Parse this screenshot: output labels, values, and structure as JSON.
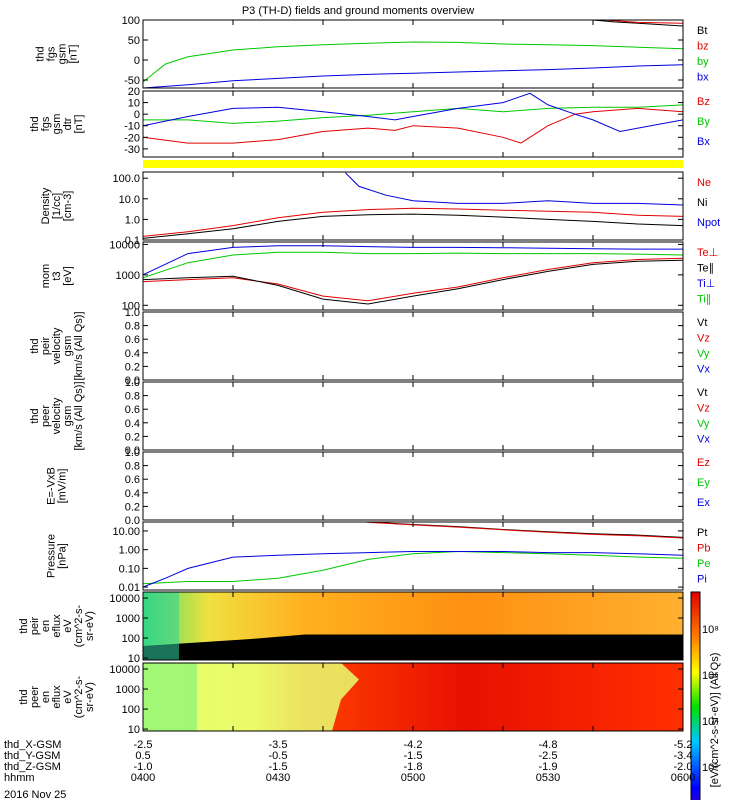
{
  "title": "P3 (TH-D) fields and ground moments overview",
  "date_label": "2016 Nov 25",
  "colors": {
    "black": "#000000",
    "red": "#e00000",
    "green": "#00c800",
    "blue": "#0000e0",
    "yellow": "#ffff00"
  },
  "chart_data": [
    {
      "id": "fgs-gsm",
      "type": "line",
      "ylabel": [
        "thd",
        "fgs",
        "gsm",
        "[nT]"
      ],
      "ylim": [
        -70,
        100
      ],
      "yticks": [
        {
          "v": -50,
          "l": "-50"
        },
        {
          "v": 0,
          "l": "0"
        },
        {
          "v": 50,
          "l": "50"
        },
        {
          "v": 100,
          "l": "100"
        }
      ],
      "series": [
        {
          "name": "Bt",
          "color": "#000000",
          "x": [
            4.95,
            5.0,
            5.25,
            5.5,
            6.0
          ],
          "y": [
            102,
            100,
            95,
            92,
            85
          ]
        },
        {
          "name": "bz",
          "color": "#e00000",
          "x": [
            4.95,
            5.0,
            5.25,
            5.5,
            6.0
          ],
          "y": [
            104,
            102,
            98,
            94,
            92
          ]
        },
        {
          "name": "by",
          "color": "#00c800",
          "x": [
            0,
            0.25,
            0.5,
            1.0,
            1.5,
            2.0,
            2.5,
            3.0,
            3.5,
            4.0,
            4.5,
            5.0,
            5.5,
            6.0
          ],
          "y": [
            -55,
            -10,
            8,
            25,
            33,
            38,
            42,
            45,
            44,
            40,
            38,
            36,
            32,
            28
          ]
        },
        {
          "name": "bx",
          "color": "#0000e0",
          "x": [
            0,
            0.5,
            1.0,
            1.5,
            2.0,
            2.5,
            3.0,
            3.5,
            4.0,
            4.5,
            5.0,
            5.5,
            6.0
          ],
          "y": [
            -70,
            -62,
            -52,
            -46,
            -40,
            -36,
            -33,
            -30,
            -27,
            -24,
            -20,
            -15,
            -12
          ]
        }
      ]
    },
    {
      "id": "fgs-gsm-dtrend",
      "type": "line",
      "ylabel": [
        "thd",
        "fgs",
        "gsm",
        "dtr",
        "[nT]"
      ],
      "ylim": [
        -37,
        20
      ],
      "yticks": [
        {
          "v": -30,
          "l": "-30"
        },
        {
          "v": -20,
          "l": "-20"
        },
        {
          "v": -10,
          "l": "-10"
        },
        {
          "v": 0,
          "l": "0"
        },
        {
          "v": 10,
          "l": "10"
        },
        {
          "v": 20,
          "l": "20"
        }
      ],
      "series": [
        {
          "name": "Bz",
          "color": "#e00000",
          "x": [
            0,
            0.5,
            1.0,
            1.5,
            2.0,
            2.5,
            2.8,
            3.0,
            3.5,
            4.0,
            4.2,
            4.5,
            4.8,
            5.0,
            5.5,
            6.0
          ],
          "y": [
            -20,
            -25,
            -25,
            -22,
            -15,
            -12,
            -14,
            -10,
            -12,
            -20,
            -25,
            -10,
            0,
            2,
            5,
            2
          ]
        },
        {
          "name": "By",
          "color": "#00c800",
          "x": [
            0,
            0.5,
            1.0,
            1.5,
            2.0,
            2.5,
            3.0,
            3.5,
            4.0,
            4.5,
            5.0,
            5.5,
            6.0
          ],
          "y": [
            -5,
            -5,
            -8,
            -6,
            -3,
            -1,
            2,
            5,
            2,
            5,
            6,
            6,
            8
          ]
        },
        {
          "name": "Bx",
          "color": "#0000e0",
          "x": [
            0,
            0.5,
            1.0,
            1.5,
            2.0,
            2.5,
            2.8,
            3.0,
            3.5,
            4.0,
            4.3,
            4.5,
            4.8,
            5.0,
            5.3,
            5.5,
            6.0
          ],
          "y": [
            -10,
            -2,
            5,
            6,
            2,
            -2,
            -5,
            -2,
            5,
            10,
            18,
            8,
            0,
            -5,
            -15,
            -12,
            -5
          ]
        }
      ]
    },
    {
      "id": "density",
      "type": "line",
      "log": true,
      "ylabel": [
        "Density",
        "[1/cc]",
        "[cm-3]"
      ],
      "ylim": [
        0.1,
        200
      ],
      "yticks": [
        {
          "v": 0.1,
          "l": "0.1"
        },
        {
          "v": 1,
          "l": "1.0"
        },
        {
          "v": 10,
          "l": "10.0"
        },
        {
          "v": 100,
          "l": "100.0"
        }
      ],
      "series": [
        {
          "name": "Ne",
          "color": "#e00000",
          "x": [
            0,
            0.5,
            1.0,
            1.5,
            2.0,
            2.5,
            3.0,
            3.5,
            4.0,
            4.5,
            5.0,
            5.5,
            6.0
          ],
          "y": [
            0.15,
            0.25,
            0.5,
            1.2,
            2.2,
            3,
            3.5,
            3.2,
            2.8,
            2.5,
            2.2,
            1.6,
            1.4
          ]
        },
        {
          "name": "Ni",
          "color": "#000000",
          "x": [
            0,
            0.5,
            1.0,
            1.5,
            2.0,
            2.5,
            3.0,
            3.5,
            4.0,
            4.5,
            5.0,
            5.5,
            6.0
          ],
          "y": [
            0.12,
            0.2,
            0.35,
            0.8,
            1.4,
            1.7,
            1.8,
            1.6,
            1.3,
            1.0,
            0.8,
            0.6,
            0.5
          ]
        },
        {
          "name": "Npot",
          "color": "#0000e0",
          "x": [
            2.25,
            2.4,
            2.7,
            3.0,
            3.5,
            4.0,
            4.5,
            5.0,
            5.5,
            6.0
          ],
          "y": [
            180,
            40,
            15,
            8,
            6,
            6,
            8,
            6,
            6,
            5
          ]
        }
      ]
    },
    {
      "id": "moments-t3",
      "type": "line",
      "log": true,
      "ylabel": [
        "mom",
        "t3",
        "[eV]"
      ],
      "ylim": [
        70,
        12000
      ],
      "yticks": [
        {
          "v": 100,
          "l": "100"
        },
        {
          "v": 1000,
          "l": "1000"
        },
        {
          "v": 10000,
          "l": "10000"
        }
      ],
      "series": [
        {
          "name": "Te⊥",
          "color": "#e00000",
          "x": [
            0,
            0.5,
            1.0,
            1.5,
            2.0,
            2.5,
            3.0,
            3.5,
            4.0,
            4.5,
            5.0,
            5.5,
            6.0
          ],
          "y": [
            600,
            700,
            800,
            500,
            200,
            140,
            250,
            400,
            800,
            1500,
            2500,
            3200,
            3500
          ]
        },
        {
          "name": "Te∥",
          "color": "#000000",
          "x": [
            0,
            0.5,
            1.0,
            1.5,
            2.0,
            2.5,
            3.0,
            3.5,
            4.0,
            4.5,
            5.0,
            5.5,
            6.0
          ],
          "y": [
            700,
            800,
            900,
            450,
            160,
            110,
            200,
            350,
            700,
            1300,
            2200,
            2800,
            3000
          ]
        },
        {
          "name": "Ti⊥",
          "color": "#0000e0",
          "x": [
            0,
            0.5,
            1.0,
            1.5,
            2.0,
            2.5,
            3.0,
            3.5,
            4.0,
            4.5,
            5.0,
            5.5,
            6.0
          ],
          "y": [
            1000,
            5000,
            8000,
            9000,
            9000,
            8500,
            8000,
            8000,
            7800,
            7500,
            7200,
            7000,
            7000
          ]
        },
        {
          "name": "Ti∥",
          "color": "#00c800",
          "x": [
            0,
            0.5,
            1.0,
            1.5,
            2.0,
            2.5,
            3.0,
            3.5,
            4.0,
            4.5,
            5.0,
            5.5,
            6.0
          ],
          "y": [
            800,
            2500,
            4500,
            5500,
            5500,
            5000,
            5000,
            5200,
            5000,
            5000,
            5000,
            4800,
            4500
          ]
        }
      ]
    },
    {
      "id": "peir-velocity",
      "type": "line",
      "ylabel": [
        "thd",
        "peir",
        "velocity",
        "gsm",
        "[km/s (All Qs)]"
      ],
      "ylim": [
        0,
        1
      ],
      "yticks": [
        {
          "v": 0,
          "l": "0.0"
        },
        {
          "v": 0.2,
          "l": "0.2"
        },
        {
          "v": 0.4,
          "l": "0.4"
        },
        {
          "v": 0.6,
          "l": "0.6"
        },
        {
          "v": 0.8,
          "l": "0.8"
        },
        {
          "v": 1.0,
          "l": "1.0"
        }
      ],
      "series": [
        {
          "name": "Vt",
          "color": "#000000"
        },
        {
          "name": "Vz",
          "color": "#e00000"
        },
        {
          "name": "Vy",
          "color": "#00c800"
        },
        {
          "name": "Vx",
          "color": "#0000e0"
        }
      ]
    },
    {
      "id": "peer-velocity",
      "type": "line",
      "ylabel": [
        "thd",
        "peer",
        "velocity",
        "gsm",
        "[km/s (All Qs)]"
      ],
      "ylim": [
        0,
        1
      ],
      "yticks": [
        {
          "v": 0,
          "l": "0.0"
        },
        {
          "v": 0.2,
          "l": "0.2"
        },
        {
          "v": 0.4,
          "l": "0.4"
        },
        {
          "v": 0.6,
          "l": "0.6"
        },
        {
          "v": 0.8,
          "l": "0.8"
        },
        {
          "v": 1.0,
          "l": "1.0"
        }
      ],
      "series": [
        {
          "name": "Vt",
          "color": "#000000"
        },
        {
          "name": "Vz",
          "color": "#e00000"
        },
        {
          "name": "Vy",
          "color": "#00c800"
        },
        {
          "name": "Vx",
          "color": "#0000e0"
        }
      ]
    },
    {
      "id": "efield",
      "type": "line",
      "ylabel": [
        "E=-VxB",
        "[mV/m]"
      ],
      "ylim": [
        0,
        1
      ],
      "yticks": [
        {
          "v": 0,
          "l": "0.0"
        },
        {
          "v": 0.2,
          "l": "0.2"
        },
        {
          "v": 0.4,
          "l": "0.4"
        },
        {
          "v": 0.6,
          "l": "0.6"
        },
        {
          "v": 0.8,
          "l": "0.8"
        },
        {
          "v": 1.0,
          "l": "1.0"
        }
      ],
      "series": [
        {
          "name": "Ez",
          "color": "#e00000"
        },
        {
          "name": "Ey",
          "color": "#00c800"
        },
        {
          "name": "Ex",
          "color": "#0000e0"
        }
      ]
    },
    {
      "id": "pressure",
      "type": "line",
      "log": true,
      "ylabel": [
        "Pressure",
        "[nPa]"
      ],
      "ylim": [
        0.007,
        30
      ],
      "yticks": [
        {
          "v": 0.01,
          "l": "0.01"
        },
        {
          "v": 0.1,
          "l": "0.10"
        },
        {
          "v": 1,
          "l": "1.00"
        },
        {
          "v": 10,
          "l": "10.00"
        }
      ],
      "series": [
        {
          "name": "Pt",
          "color": "#000000",
          "x": [
            2.3,
            2.5,
            3.0,
            3.5,
            4.0,
            4.5,
            5.0,
            5.5,
            6.0
          ],
          "y": [
            35,
            30,
            22,
            17,
            12,
            9,
            7,
            6,
            4.5
          ]
        },
        {
          "name": "Pb",
          "color": "#e00000",
          "x": [
            2.3,
            2.5,
            3.0,
            3.5,
            4.0,
            4.5,
            5.0,
            5.5,
            6.0
          ],
          "y": [
            34,
            29,
            21,
            16,
            11.5,
            8.5,
            6.5,
            5.5,
            4.2
          ]
        },
        {
          "name": "Pe",
          "color": "#00c800",
          "x": [
            0,
            0.5,
            1.0,
            1.5,
            2.0,
            2.5,
            3.0,
            3.5,
            4.0,
            4.5,
            5.0,
            5.5,
            6.0
          ],
          "y": [
            0.015,
            0.02,
            0.02,
            0.03,
            0.08,
            0.3,
            0.6,
            0.8,
            0.7,
            0.6,
            0.5,
            0.4,
            0.35
          ]
        },
        {
          "name": "Pi",
          "color": "#0000e0",
          "x": [
            0,
            0.25,
            0.5,
            1.0,
            1.5,
            2.0,
            2.5,
            3.0,
            3.5,
            4.0,
            4.5,
            5.0,
            5.5,
            6.0
          ],
          "y": [
            0.01,
            0.03,
            0.1,
            0.4,
            0.5,
            0.6,
            0.7,
            0.8,
            0.8,
            0.8,
            0.7,
            0.7,
            0.6,
            0.5
          ]
        }
      ]
    },
    {
      "id": "peir-en-eflux",
      "type": "heatmap",
      "log": true,
      "ylabel": [
        "thd",
        "peir",
        "en",
        "eflux",
        "eV",
        "(cm^2-s-",
        "sr-eV)"
      ],
      "ylim": [
        8,
        20000
      ],
      "yticks": [
        {
          "v": 10,
          "l": "10"
        },
        {
          "v": 100,
          "l": "100"
        },
        {
          "v": 1000,
          "l": "1000"
        },
        {
          "v": 10000,
          "l": "10000"
        }
      ]
    },
    {
      "id": "peer-en-eflux",
      "type": "heatmap",
      "log": true,
      "ylabel": [
        "thd",
        "peer",
        "en",
        "eflux",
        "eV",
        "(cm^2-s-",
        "sr-eV)"
      ],
      "ylim": [
        8,
        20000
      ],
      "yticks": [
        {
          "v": 10,
          "l": "10"
        },
        {
          "v": 100,
          "l": "100"
        },
        {
          "v": 1000,
          "l": "1000"
        },
        {
          "v": 10000,
          "l": "10000"
        }
      ]
    }
  ],
  "colorbar": {
    "label": "[eV/(cm^2-s-sr-eV)] (All Qs)",
    "ticks": [
      "10²",
      "10⁴",
      "10⁶",
      "10⁸"
    ]
  },
  "xaxis": {
    "rows": [
      {
        "label": "thd_X-GSM",
        "values": [
          "-2.5",
          "-3.5",
          "-4.2",
          "-4.8",
          "-5.2"
        ]
      },
      {
        "label": "thd_Y-GSM",
        "values": [
          "0.5",
          "-0.5",
          "-1.5",
          "-2.5",
          "-3.4"
        ]
      },
      {
        "label": "thd_Z-GSM",
        "values": [
          "-1.0",
          "-1.5",
          "-1.8",
          "-1.9",
          "-2.0"
        ]
      },
      {
        "label": "hhmm",
        "values": [
          "0400",
          "0430",
          "0500",
          "0530",
          "0600"
        ]
      }
    ]
  }
}
